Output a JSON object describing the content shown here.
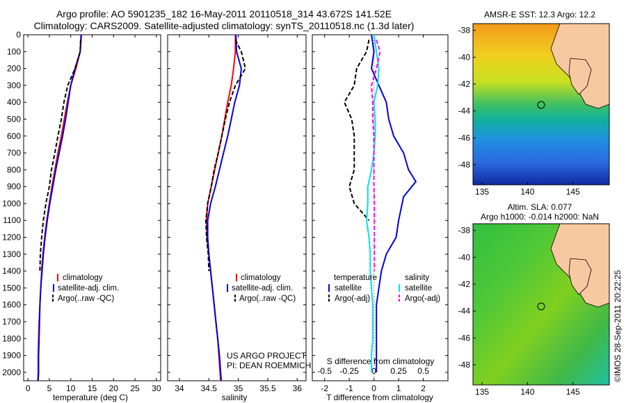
{
  "header": {
    "title_line1": "Argo profile: AO 5901235_182 16-May-2011 20110518_314 43.672S 141.52E",
    "title_line2": "Climatology: CARS2009. Satellite-adjusted climatology: synTS_20110518.nc (1.3d later)"
  },
  "panels": {
    "temperature": {
      "xlabel": "temperature (deg C)",
      "legend": [
        "climatology",
        "satellite-adj. clim.",
        "Argo(..raw -QC)"
      ]
    },
    "salinity": {
      "xlabel": "salinity",
      "legend": [
        "climatology",
        "satellite-adj. clim.",
        "Argo(..raw -QC)"
      ],
      "note_line1": "US ARGO PROJECT",
      "note_line2": "PI: DEAN ROEMMICH"
    },
    "difference": {
      "xlabel_bottom": "T difference from climatology",
      "xlabel_top": "S difference from climatology",
      "top_ticks": [
        "-0.5",
        "-0.25",
        "0",
        "0.25",
        "0.5"
      ],
      "legend_titles": [
        "temperature",
        "salinity"
      ],
      "legend": [
        "satellite",
        "Argo(-adj)",
        "satellite",
        "Argo(-adj)"
      ]
    },
    "maps": {
      "sst_title": "AMSR-E SST: 12.3 Argo: 12.2",
      "sla_title_line1": "Altim. SLA: 0.077",
      "sla_title_line2": "Argo h1000: -0.014 h2000: NaN",
      "lat_ticks": [
        "-38",
        "-40",
        "-42",
        "-44",
        "-46",
        "-48"
      ],
      "lon_ticks": [
        "135",
        "140",
        "145"
      ],
      "credit": "©IMOS 28-Sep-2011 20:22:25"
    }
  },
  "colors": {
    "climatology": "#ff0000",
    "satellite": "#0000dd",
    "argo": "#000000",
    "salinity_satellite": "#00e0f0",
    "salinity_argo": "#ff00ff",
    "land": "#f8c8a0"
  },
  "chart_data": [
    {
      "type": "line",
      "title": "",
      "xlabel": "temperature (deg C)",
      "ylabel": "",
      "xlim": [
        -1,
        31
      ],
      "ylim": [
        2050,
        0
      ],
      "xticks": [
        0,
        5,
        10,
        15,
        20,
        25,
        30
      ],
      "yticks": [
        0,
        100,
        200,
        300,
        400,
        500,
        600,
        700,
        800,
        900,
        1000,
        1100,
        1200,
        1300,
        1400,
        1500,
        1600,
        1700,
        1800,
        1900,
        2000
      ],
      "series": [
        {
          "name": "climatology",
          "color": "#ff0000",
          "style": "solid",
          "x": [
            12.5,
            12.2,
            11.2,
            10.0,
            9.2,
            8.5,
            7.8,
            7.0,
            6.3,
            5.6,
            5.0,
            4.4,
            3.9,
            3.5,
            3.2,
            3.0,
            2.8,
            2.6,
            2.5,
            2.4,
            2.4,
            2.3
          ],
          "y": [
            0,
            100,
            200,
            300,
            400,
            500,
            600,
            700,
            800,
            900,
            1000,
            1100,
            1200,
            1300,
            1400,
            1500,
            1600,
            1700,
            1800,
            1900,
            2000,
            2050
          ]
        },
        {
          "name": "satellite-adj. clim.",
          "color": "#0000dd",
          "style": "solid",
          "x": [
            12.4,
            12.2,
            11.0,
            10.0,
            9.4,
            8.8,
            8.1,
            7.3,
            6.5,
            5.8,
            5.1,
            4.5,
            4.0,
            3.6,
            3.3,
            3.0,
            2.8,
            2.7,
            2.6,
            2.5,
            2.5,
            2.4
          ],
          "y": [
            0,
            100,
            200,
            300,
            400,
            500,
            600,
            700,
            800,
            900,
            1000,
            1100,
            1200,
            1300,
            1400,
            1500,
            1600,
            1700,
            1800,
            1900,
            2000,
            2050
          ]
        },
        {
          "name": "Argo(..raw -QC)",
          "color": "#000000",
          "style": "dashed",
          "x": [
            12.3,
            12.2,
            11.0,
            9.3,
            8.4,
            7.8,
            7.0,
            6.3,
            5.5,
            5.0,
            4.2,
            3.6,
            3.2,
            2.9,
            2.8
          ],
          "y": [
            30,
            100,
            200,
            300,
            400,
            500,
            600,
            700,
            800,
            900,
            1000,
            1100,
            1200,
            1300,
            1400
          ]
        }
      ]
    },
    {
      "type": "line",
      "title": "",
      "xlabel": "salinity",
      "ylabel": "",
      "xlim": [
        33.8,
        36.15
      ],
      "ylim": [
        2050,
        0
      ],
      "xticks": [
        34,
        34.5,
        35,
        35.5,
        36
      ],
      "series": [
        {
          "name": "climatology",
          "color": "#ff0000",
          "style": "solid",
          "x": [
            34.95,
            34.95,
            34.92,
            34.88,
            34.82,
            34.77,
            34.72,
            34.66,
            34.6,
            34.54,
            34.48,
            34.46,
            34.47,
            34.5,
            34.53,
            34.56,
            34.59,
            34.62,
            34.65,
            34.67,
            34.69,
            34.7
          ],
          "y": [
            0,
            100,
            200,
            300,
            400,
            500,
            600,
            700,
            800,
            900,
            1000,
            1100,
            1200,
            1300,
            1400,
            1500,
            1600,
            1700,
            1800,
            1900,
            2000,
            2050
          ]
        },
        {
          "name": "satellite-adj. clim.",
          "color": "#0000dd",
          "style": "solid",
          "x": [
            34.96,
            34.97,
            35.05,
            35.02,
            34.94,
            34.88,
            34.82,
            34.75,
            34.68,
            34.61,
            34.53,
            34.48,
            34.48,
            34.5,
            34.53,
            34.56,
            34.59,
            34.62,
            34.65,
            34.68,
            34.7,
            34.71
          ],
          "y": [
            0,
            100,
            200,
            300,
            400,
            500,
            600,
            700,
            800,
            900,
            1000,
            1100,
            1200,
            1300,
            1400,
            1500,
            1600,
            1700,
            1800,
            1900,
            2000,
            2050
          ]
        },
        {
          "name": "Argo(..raw -QC)",
          "color": "#000000",
          "style": "dashed",
          "x": [
            34.95,
            35.05,
            35.12,
            34.95,
            34.85,
            34.78,
            34.72,
            34.66,
            34.59,
            34.54,
            34.48,
            34.45,
            34.46,
            34.49,
            34.5
          ],
          "y": [
            30,
            100,
            200,
            300,
            400,
            500,
            600,
            700,
            800,
            900,
            1000,
            1100,
            1200,
            1300,
            1400
          ]
        }
      ]
    },
    {
      "type": "line",
      "title": "",
      "xlabel": "T difference from climatology",
      "xlabel_top": "S difference from climatology",
      "ylabel": "",
      "xlim": [
        -2.5,
        3.0
      ],
      "xlim_top": [
        -0.625,
        0.75
      ],
      "ylim": [
        2050,
        0
      ],
      "xticks": [
        -2,
        -1,
        0,
        1,
        2
      ],
      "series": [
        {
          "name": "temperature satellite",
          "color": "#0000dd",
          "style": "solid",
          "x": [
            -0.1,
            0.0,
            -0.1,
            0.2,
            0.5,
            0.6,
            0.8,
            1.2,
            1.4,
            1.7,
            1.2,
            1.0,
            0.9,
            0.5,
            0.3,
            0.2,
            0.1,
            0.1,
            0.1,
            0.1,
            0.1
          ],
          "y": [
            0,
            100,
            200,
            300,
            400,
            500,
            600,
            700,
            800,
            870,
            960,
            1100,
            1200,
            1300,
            1400,
            1500,
            1600,
            1700,
            1800,
            1900,
            2000
          ]
        },
        {
          "name": "temperature Argo(-adj)",
          "color": "#000000",
          "style": "dashed",
          "x": [
            -0.2,
            -0.3,
            -0.7,
            -0.8,
            -1.2,
            -0.9,
            -0.8,
            -0.8,
            -0.8,
            -1.0,
            -0.8,
            -0.2
          ],
          "y": [
            30,
            100,
            200,
            300,
            400,
            500,
            600,
            700,
            800,
            900,
            1000,
            1100
          ]
        },
        {
          "name": "salinity satellite",
          "color": "#00e0f0",
          "style": "solid",
          "x": [
            0.0,
            0.1,
            0.2,
            0.15,
            0.0,
            0.05,
            0.05,
            0.0,
            -0.1,
            -0.25,
            -0.25,
            -0.3,
            -0.2,
            -0.15,
            -0.15,
            -0.1,
            -0.05,
            -0.05,
            -0.05,
            -0.1,
            -0.1
          ],
          "y": [
            0,
            100,
            200,
            300,
            400,
            500,
            600,
            700,
            800,
            900,
            1000,
            1100,
            1200,
            1300,
            1400,
            1500,
            1600,
            1700,
            1800,
            1900,
            2000
          ]
        },
        {
          "name": "salinity Argo(-adj)",
          "color": "#ff00ff",
          "style": "dashed",
          "x": [
            0.1,
            0.25,
            0.1,
            -0.1,
            -0.05,
            -0.05,
            0.0,
            0.0,
            0.0,
            0.0,
            0.02,
            0.02,
            0.02,
            0.02,
            0.02
          ],
          "y": [
            30,
            100,
            200,
            300,
            400,
            500,
            600,
            700,
            800,
            900,
            1000,
            1100,
            1200,
            1300,
            1400
          ]
        }
      ]
    },
    {
      "type": "heatmap",
      "title": "AMSR-E SST: 12.3 Argo: 12.2",
      "xlim": [
        134,
        149
      ],
      "ylim": [
        -49.5,
        -37.5
      ],
      "xticks": [
        135,
        140,
        145
      ],
      "yticks": [
        -38,
        -40,
        -42,
        -44,
        -46,
        -48
      ],
      "argo_position": [
        141.52,
        -43.672
      ]
    },
    {
      "type": "heatmap",
      "title": "Altim. SLA: 0.077",
      "xlim": [
        134,
        149
      ],
      "ylim": [
        -49.5,
        -37.5
      ],
      "xticks": [
        135,
        140,
        145
      ],
      "yticks": [
        -38,
        -40,
        -42,
        -44,
        -46,
        -48
      ],
      "argo_position": [
        141.52,
        -43.672
      ]
    }
  ]
}
